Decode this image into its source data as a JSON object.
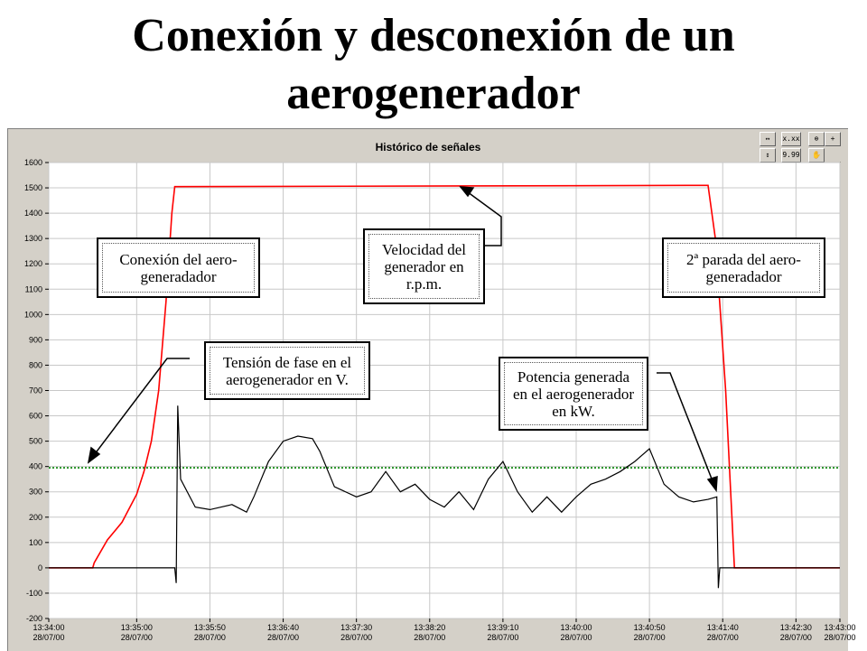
{
  "slide": {
    "title": "Conexión y desconexión de un\naerogenerador"
  },
  "panel": {
    "title": "Histórico de señales",
    "toolbar": [
      {
        "name": "scroll-x-button",
        "label": "↔"
      },
      {
        "name": "scale-x-button",
        "label": "x.xx"
      },
      {
        "name": "zoom-button",
        "label": "⊕"
      },
      {
        "name": "cursor-button",
        "label": "+"
      },
      {
        "name": "scroll-y-button",
        "label": "↕"
      },
      {
        "name": "scale-y-button",
        "label": "9.99"
      },
      {
        "name": "pan-button",
        "label": "✋"
      }
    ]
  },
  "colors": {
    "speed": "#ff0000",
    "voltage": "#008000",
    "power": "#000000",
    "grid": "#c8c8c8",
    "panel": "#d4d0c8"
  },
  "chart_data": {
    "type": "line",
    "ylim": [
      -200,
      1600
    ],
    "y_ticks": [
      "1600",
      "1500",
      "1400",
      "1300",
      "1200",
      "1100",
      "1000",
      "900",
      "800",
      "700",
      "600",
      "500",
      "400",
      "300",
      "200",
      "100",
      "0",
      "-100",
      "-200"
    ],
    "x_ticks": [
      {
        "time": "13:34:00",
        "date": "28/07/00"
      },
      {
        "time": "13:35:00",
        "date": "28/07/00"
      },
      {
        "time": "13:35:50",
        "date": "28/07/00"
      },
      {
        "time": "13:36:40",
        "date": "28/07/00"
      },
      {
        "time": "13:37:30",
        "date": "28/07/00"
      },
      {
        "time": "13:38:20",
        "date": "28/07/00"
      },
      {
        "time": "13:39:10",
        "date": "28/07/00"
      },
      {
        "time": "13:40:00",
        "date": "28/07/00"
      },
      {
        "time": "13:40:50",
        "date": "28/07/00"
      },
      {
        "time": "13:41:40",
        "date": "28/07/00"
      },
      {
        "time": "13:42:30",
        "date": "28/07/00"
      },
      {
        "time": "13:43:00",
        "date": "28/07/00"
      }
    ],
    "series": [
      {
        "name": "Velocidad del generador en r.p.m.",
        "points": [
          [
            "13:34:00",
            0
          ],
          [
            "13:34:30",
            0
          ],
          [
            "13:34:31",
            20
          ],
          [
            "13:34:40",
            110
          ],
          [
            "13:34:50",
            180
          ],
          [
            "13:35:00",
            290
          ],
          [
            "13:35:05",
            380
          ],
          [
            "13:35:10",
            500
          ],
          [
            "13:35:15",
            700
          ],
          [
            "13:35:20",
            1050
          ],
          [
            "13:35:24",
            1400
          ],
          [
            "13:35:26",
            1505
          ],
          [
            "13:41:30",
            1510
          ],
          [
            "13:41:35",
            1300
          ],
          [
            "13:41:42",
            700
          ],
          [
            "13:41:48",
            0
          ],
          [
            "13:43:00",
            0
          ]
        ]
      },
      {
        "name": "Tensión de fase en el aerogenerador en V.",
        "points": [
          [
            "13:34:00",
            395
          ],
          [
            "13:43:00",
            395
          ]
        ]
      },
      {
        "name": "Potencia generada en el aerogenerador en kW.",
        "points": [
          [
            "13:34:00",
            0
          ],
          [
            "13:35:26",
            0
          ],
          [
            "13:35:27",
            -60
          ],
          [
            "13:35:28",
            640
          ],
          [
            "13:35:30",
            350
          ],
          [
            "13:35:40",
            240
          ],
          [
            "13:35:50",
            230
          ],
          [
            "13:36:05",
            250
          ],
          [
            "13:36:15",
            220
          ],
          [
            "13:36:20",
            280
          ],
          [
            "13:36:30",
            420
          ],
          [
            "13:36:40",
            500
          ],
          [
            "13:36:50",
            520
          ],
          [
            "13:37:00",
            510
          ],
          [
            "13:37:05",
            460
          ],
          [
            "13:37:15",
            320
          ],
          [
            "13:37:30",
            280
          ],
          [
            "13:37:40",
            300
          ],
          [
            "13:37:50",
            380
          ],
          [
            "13:38:00",
            300
          ],
          [
            "13:38:10",
            330
          ],
          [
            "13:38:20",
            270
          ],
          [
            "13:38:30",
            240
          ],
          [
            "13:38:40",
            300
          ],
          [
            "13:38:50",
            230
          ],
          [
            "13:39:00",
            350
          ],
          [
            "13:39:10",
            420
          ],
          [
            "13:39:20",
            300
          ],
          [
            "13:39:30",
            220
          ],
          [
            "13:39:40",
            280
          ],
          [
            "13:39:50",
            220
          ],
          [
            "13:40:00",
            280
          ],
          [
            "13:40:10",
            330
          ],
          [
            "13:40:20",
            350
          ],
          [
            "13:40:30",
            380
          ],
          [
            "13:40:40",
            420
          ],
          [
            "13:40:50",
            470
          ],
          [
            "13:41:00",
            330
          ],
          [
            "13:41:10",
            280
          ],
          [
            "13:41:20",
            260
          ],
          [
            "13:41:30",
            270
          ],
          [
            "13:41:36",
            280
          ],
          [
            "13:41:37",
            -80
          ],
          [
            "13:41:38",
            0
          ],
          [
            "13:43:00",
            0
          ]
        ]
      }
    ]
  },
  "annotations": {
    "connection": "Conexión del aero-\ngeneradador",
    "speed": "Velocidad del\ngenerador en\nr.p.m.",
    "stop": "2ª parada del aero-\ngeneradador",
    "voltage": "Tensión de fase en el\naerogenerador en V.",
    "power": "Potencia generada\nen el aerogenerador\nen kW."
  }
}
